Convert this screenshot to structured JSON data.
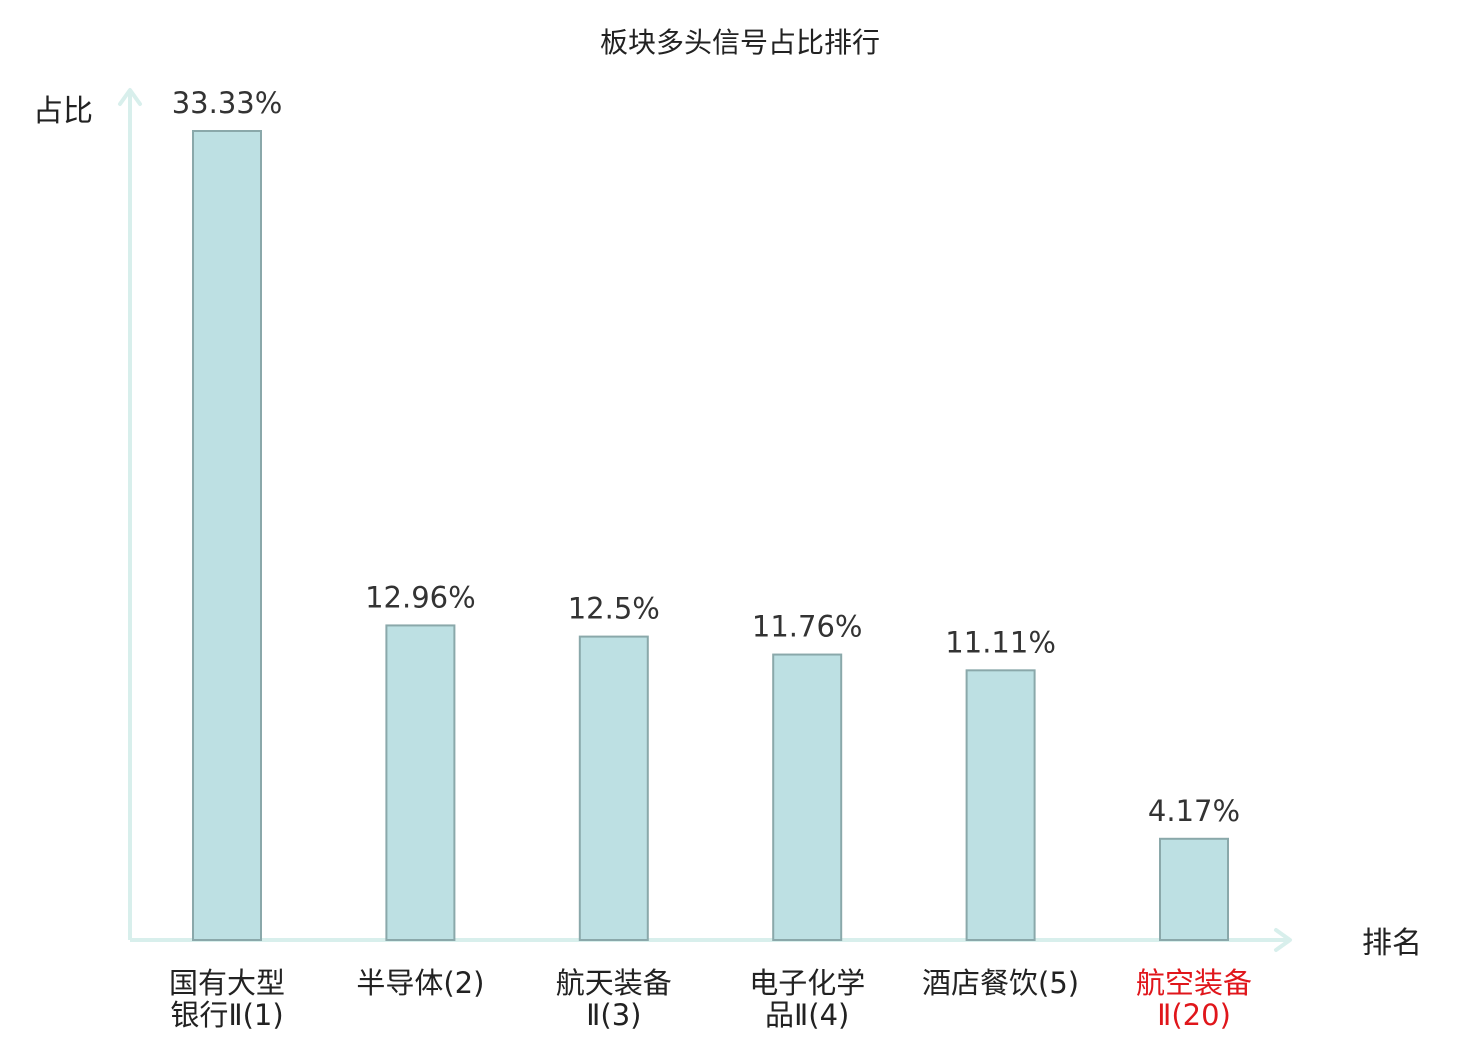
{
  "chart_data": {
    "type": "bar",
    "title": "板块多头信号占比排行",
    "ylabel": "占比",
    "xlabel": "排名",
    "categories": [
      [
        "国有大型",
        "银行Ⅱ(1)"
      ],
      [
        "半导体(2)"
      ],
      [
        "航天装备",
        "Ⅱ(3)"
      ],
      [
        "电子化学",
        "品Ⅱ(4)"
      ],
      [
        "酒店餐饮(5)"
      ],
      [
        "航空装备",
        "Ⅱ(20)"
      ]
    ],
    "values": [
      33.33,
      12.96,
      12.5,
      11.76,
      11.11,
      4.17
    ],
    "value_labels": [
      "33.33%",
      "12.96%",
      "12.5%",
      "11.76%",
      "11.11%",
      "4.17%"
    ],
    "highlight_index": 5,
    "ylim": [
      0,
      33.33
    ],
    "grid": false,
    "colors": {
      "bar_fill": "#bde0e3",
      "bar_stroke": "#8aa8aa",
      "axis": "#d8efec",
      "text": "#222222",
      "highlight_text": "#e0161b"
    }
  }
}
